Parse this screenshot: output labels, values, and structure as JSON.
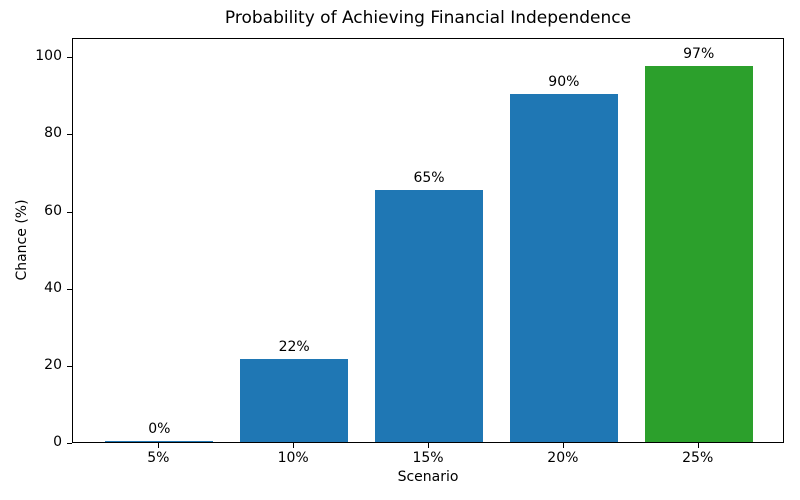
{
  "chart_data": {
    "type": "bar",
    "title": "Probability of Achieving Financial Independence",
    "xlabel": "Scenario",
    "ylabel": "Chance (%)",
    "categories": [
      "5%",
      "10%",
      "15%",
      "20%",
      "25%"
    ],
    "values": [
      0.3,
      21.5,
      65.3,
      90.1,
      97.4
    ],
    "bar_labels": [
      "0%",
      "22%",
      "65%",
      "90%",
      "97%"
    ],
    "bar_colors": [
      "#1f77b4",
      "#1f77b4",
      "#1f77b4",
      "#1f77b4",
      "#2ca02c"
    ],
    "ylim": [
      0,
      105
    ],
    "yticks": [
      0,
      20,
      40,
      60,
      80,
      100
    ],
    "grid": false,
    "legend": "none",
    "background_color": "#ffffff",
    "axis_color": "#000000",
    "blue_color": "#1f77b4",
    "green_color": "#2ca02c"
  }
}
